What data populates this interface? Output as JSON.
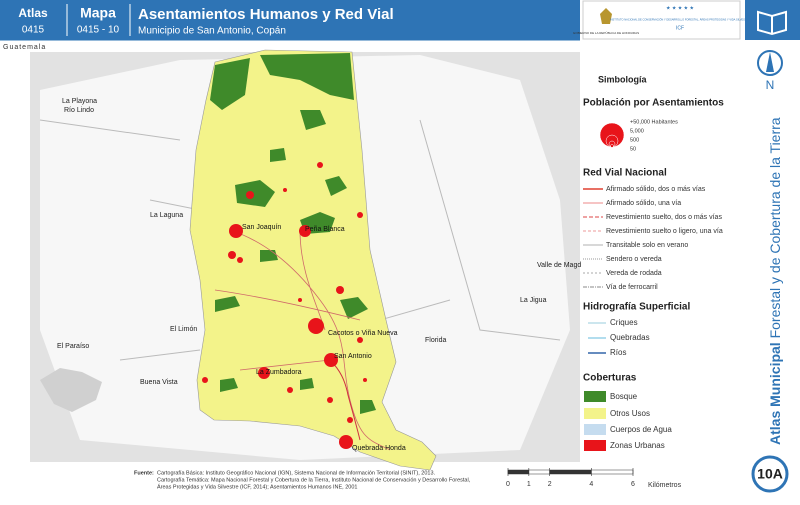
{
  "header": {
    "atlas_label": "Atlas",
    "atlas_code": "0415",
    "map_label": "Mapa",
    "map_code": "0415 - 10",
    "title": "Asentamientos Humanos y Red Vial",
    "subtitle": "Municipio de San Antonio, Copán"
  },
  "logos": {
    "government": "GOBIERNO DE LA REPÚBLICA DE HONDURAS",
    "institute": "INSTITUTO NACIONAL DE CONSERVACIÓN Y DESARROLLO FORESTAL, ÁREAS PROTEGIDAS Y VIDA SILVESTRE",
    "institute_short": "ICF"
  },
  "sidebar": {
    "north": "N",
    "series_bold": "Atlas Municipal",
    "series_rest": "Forestal y de Cobertura de la Tierra",
    "sheet": "10A"
  },
  "map": {
    "country_label": "Guatemala",
    "places_outside": [
      "La Playona",
      "Río Lindo",
      "La Laguna",
      "El Limón",
      "El Paraíso",
      "Buena Vista",
      "Valle de Magd",
      "La Jigua",
      "Florida"
    ],
    "places_inside": [
      "San Joaquín",
      "Peña Blanca",
      "Cacotos o Viña Nueva",
      "San Antonio",
      "La Zumbadora",
      "Quebrada Honda"
    ]
  },
  "legend": {
    "title": "Simbología",
    "population": {
      "title": "Población por Asentamientos",
      "sizes": [
        "+50,000 Habitantes",
        "5,000",
        "500",
        "50"
      ]
    },
    "roads": {
      "title": "Red Vial Nacional",
      "items": [
        "Afirmado sólido, dos o más vías",
        "Afirmado sólido, una vía",
        "Revestimiento suelto, dos o más vías",
        "Revestimiento suelto o ligero, una vía",
        "Transitable solo en verano",
        "Sendero o vereda",
        "Vereda de rodada",
        "Vía de ferrocarril"
      ]
    },
    "hydro": {
      "title": "Hidrografía Superficial",
      "items": [
        "Criques",
        "Quebradas",
        "Ríos"
      ]
    },
    "cover": {
      "title": "Coberturas",
      "items": [
        "Bosque",
        "Otros Usos",
        "Cuerpos de Agua",
        "Zonas Urbanas"
      ]
    }
  },
  "source": {
    "label": "Fuente:",
    "lines": [
      "Cartografía Básica: Instituto Geográfico Nacional (IGN), Sistema Nacional de Información Territorial (SINIT), 2013.",
      "Cartografía Temática: Mapa Nacional Forestal y Cobertura de la Tierra, Instituto Nacional de Conservación y Desarrollo Forestal,",
      "Áreas Protegidas y Vida Silvestre (ICF, 2014); Asentamientos Humanos INE, 2001"
    ]
  },
  "scale": {
    "ticks": [
      0,
      1,
      2,
      4,
      6
    ],
    "unit": "Kilómetros"
  }
}
